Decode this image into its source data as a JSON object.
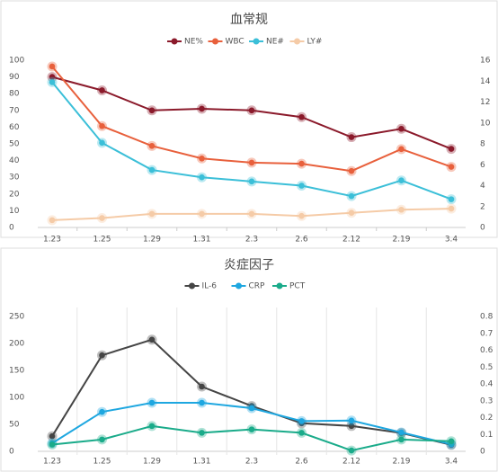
{
  "chart_data": [
    {
      "type": "line",
      "title": "血常规",
      "categories": [
        "1.23",
        "1.25",
        "1.29",
        "1.31",
        "2.3",
        "2.6",
        "2.12",
        "2.19",
        "3.4"
      ],
      "ylim": [
        0,
        100
      ],
      "yticks": [
        0,
        10,
        20,
        30,
        40,
        50,
        60,
        70,
        80,
        90,
        100
      ],
      "y2lim": [
        0,
        16
      ],
      "y2ticks": [
        0,
        2,
        4,
        6,
        8,
        10,
        12,
        14,
        16
      ],
      "legend": "top",
      "category_grid": false,
      "series": [
        {
          "name": "NE%",
          "color": "#8b1a2b",
          "values": [
            90,
            82,
            70,
            71,
            70,
            66,
            54,
            59,
            47
          ]
        },
        {
          "name": "WBC",
          "color": "#e8603c",
          "axis": "y2",
          "values": [
            15.4,
            9.7,
            7.8,
            6.6,
            6.2,
            6.1,
            5.4,
            7.5,
            5.8
          ]
        },
        {
          "name": "NE#",
          "color": "#3bbfd8",
          "axis": "y2",
          "values": [
            13.9,
            8.1,
            5.5,
            4.8,
            4.4,
            4.0,
            3.0,
            4.5,
            2.7
          ]
        },
        {
          "name": "LY#",
          "color": "#f5cba7",
          "axis": "y2",
          "values": [
            0.7,
            0.9,
            1.3,
            1.3,
            1.3,
            1.1,
            1.4,
            1.7,
            1.8
          ]
        }
      ]
    },
    {
      "type": "line",
      "title": "炎症因子",
      "categories": [
        "1.23",
        "1.25",
        "1.29",
        "1.31",
        "2.3",
        "2.6",
        "2.12",
        "2.19",
        "3.4"
      ],
      "ylim": [
        0,
        250
      ],
      "yticks": [
        0,
        50,
        100,
        150,
        200,
        250
      ],
      "y2lim": [
        0,
        0.8
      ],
      "y2ticks": [
        0,
        0.1,
        0.2,
        0.3,
        0.4,
        0.5,
        0.6,
        0.7,
        0.8
      ],
      "legend": "top",
      "category_grid": true,
      "series": [
        {
          "name": "IL-6",
          "color": "#454545",
          "values": [
            28,
            178,
            207,
            120,
            84,
            52,
            47,
            34,
            12
          ]
        },
        {
          "name": "CRP",
          "color": "#1ea7e0",
          "values": [
            15,
            73,
            90,
            90,
            80,
            56,
            57,
            35,
            13
          ]
        },
        {
          "name": "PCT",
          "color": "#1aab8a",
          "axis": "y2",
          "values": [
            0.04,
            0.07,
            0.15,
            0.11,
            0.13,
            0.11,
            0.005,
            0.07,
            0.06
          ]
        }
      ]
    }
  ]
}
